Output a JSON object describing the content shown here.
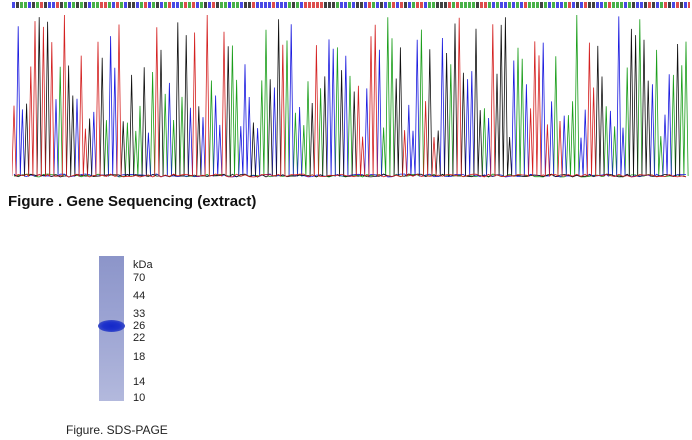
{
  "figure1": {
    "caption": "Figure . Gene Sequencing (extract)",
    "trace_colors": {
      "A": "#1a9e1a",
      "C": "#1a1adf",
      "G": "#111111",
      "T": "#d42020"
    }
  },
  "figure2": {
    "caption": "Figure. SDS-PAGE",
    "unit_label": "kDa",
    "marker_labels": [
      "70",
      "44",
      "33",
      "26",
      "22",
      "18",
      "14",
      "10"
    ],
    "band_color": "#1e32cc"
  }
}
